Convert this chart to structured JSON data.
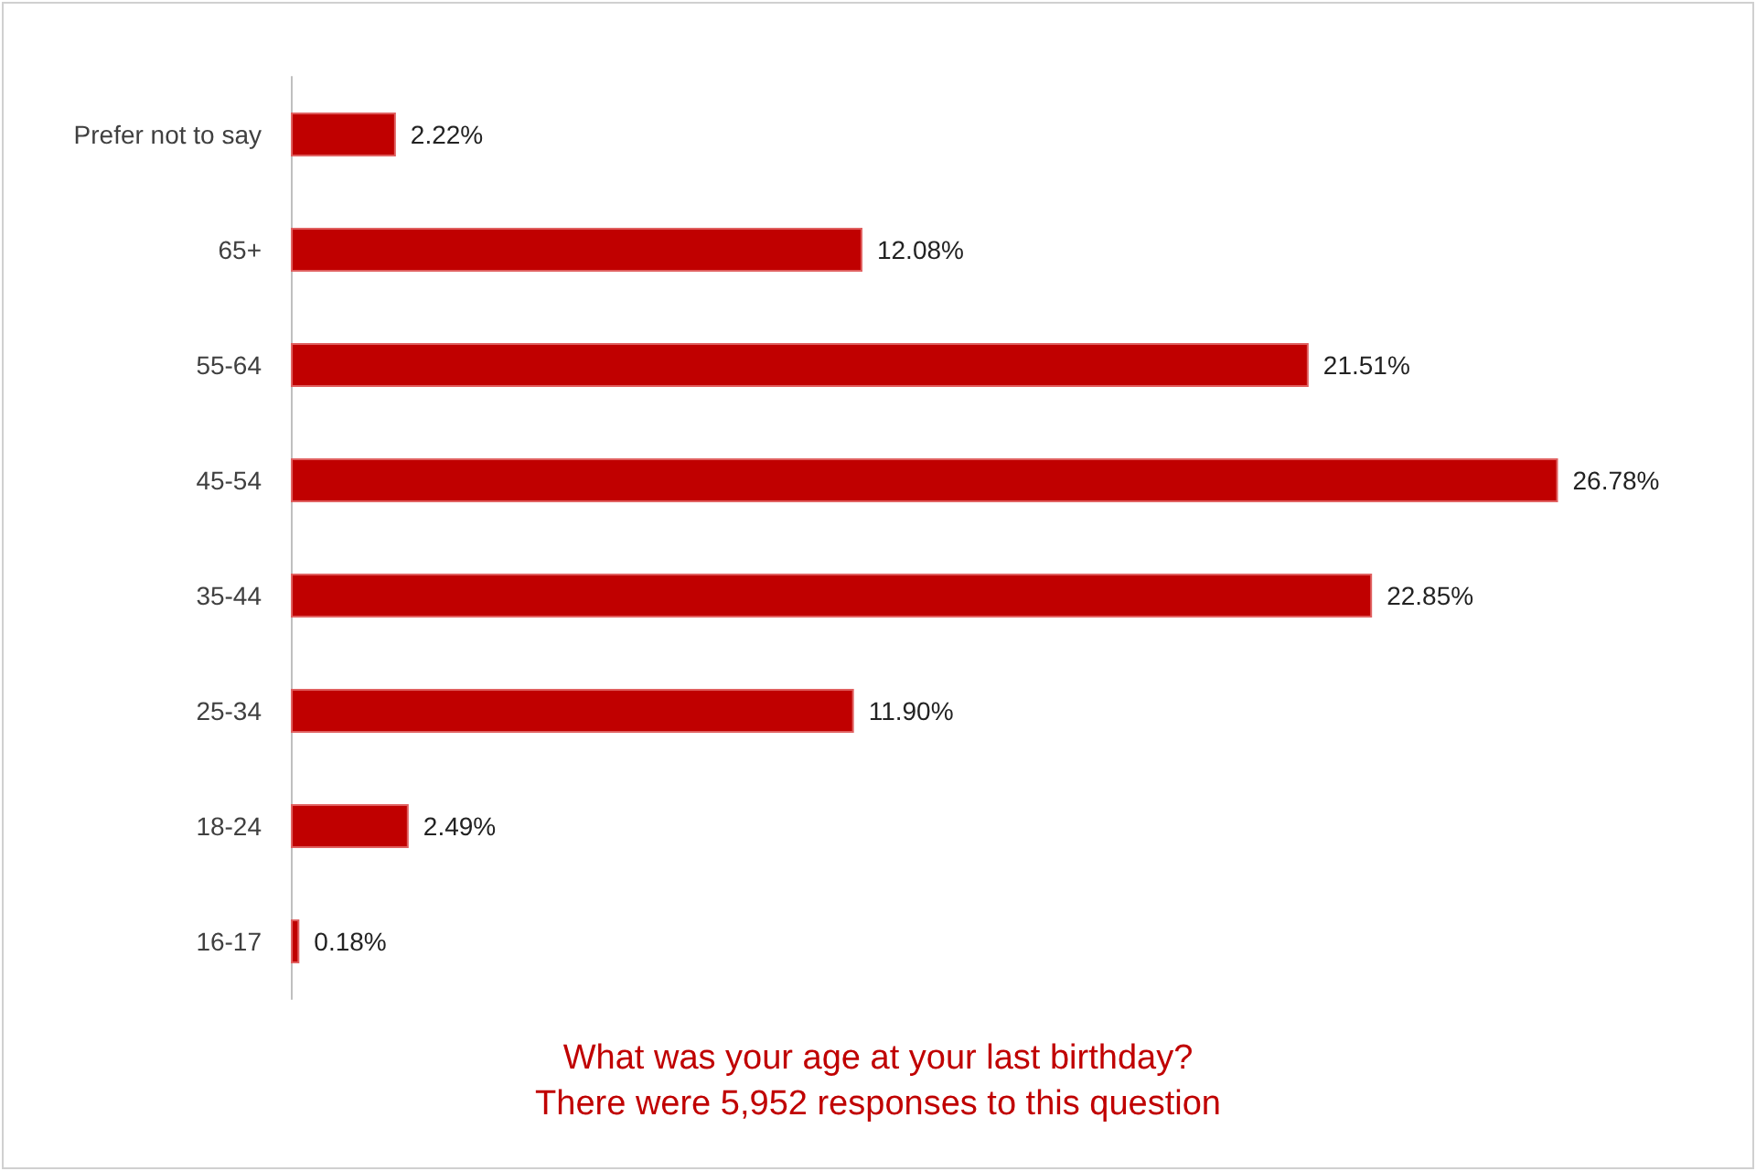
{
  "chart_data": {
    "type": "bar",
    "orientation": "horizontal",
    "title": "What was your age at your last birthday?",
    "subtitle": "There were 5,952 responses to this question",
    "categories": [
      "Prefer not to say",
      "65+",
      "55-64",
      "45-54",
      "35-44",
      "25-34",
      "18-24",
      "16-17"
    ],
    "values": [
      2.22,
      12.08,
      21.51,
      26.78,
      22.85,
      11.9,
      2.49,
      0.18
    ],
    "value_labels": [
      "2.22%",
      "12.08%",
      "21.51%",
      "26.78%",
      "22.85%",
      "11.90%",
      "2.49%",
      "0.18%"
    ],
    "color": "#c00000"
  }
}
